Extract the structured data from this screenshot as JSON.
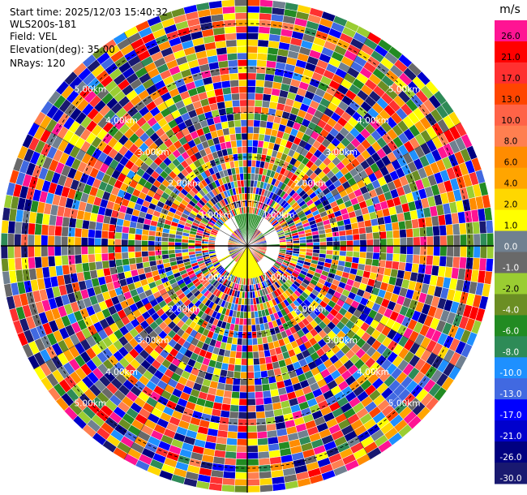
{
  "info": {
    "start_time": "Start time: 2025/12/03 15:40:32",
    "instrument": "WLS200s-181",
    "field": "Field: VEL",
    "elevation": "Elevation(deg): 35.00",
    "nrays": "NRays: 120"
  },
  "chart_data": {
    "type": "ppi-polar-heatmap",
    "field": "VEL",
    "instrument": "WLS200s-181",
    "elevation_deg": 35.0,
    "n_rays": 120,
    "range_rings": [
      {
        "label": "1.00km"
      },
      {
        "label": "2.00km"
      },
      {
        "label": "3.00km"
      },
      {
        "label": "4.00km"
      },
      {
        "label": "5.00km"
      }
    ],
    "ring_label_angles_deg": [
      45,
      135,
      225,
      315
    ],
    "colorbar": {
      "unit": "m/s",
      "ticks": [
        "26.0",
        "21.0",
        "17.0",
        "13.0",
        "10.0",
        "8.0",
        "6.0",
        "4.0",
        "2.0",
        "1.0",
        "0.0",
        "-1.0",
        "-2.0",
        "-4.0",
        "-6.0",
        "-8.0",
        "-10.0",
        "-13.0",
        "-17.0",
        "-21.0",
        "-26.0",
        "-30.0"
      ],
      "colors": [
        "#ff1493",
        "#ff0000",
        "#ff3030",
        "#ff4500",
        "#ff6347",
        "#ff7f50",
        "#ff8c00",
        "#ffa500",
        "#ffd700",
        "#ffff00",
        "#708090",
        "#696969",
        "#9acd32",
        "#6b8e23",
        "#228b22",
        "#2e8b57",
        "#1e90ff",
        "#4169e1",
        "#0000ff",
        "#0000cd",
        "#000080",
        "#191970"
      ]
    },
    "notes": "Near-range sectors show low-magnitude velocities: yellow (about +1 to +2 m/s) south of the origin and green (about -4 to -6 m/s) north of it; the rest of the field is noisy across the full colour range."
  }
}
